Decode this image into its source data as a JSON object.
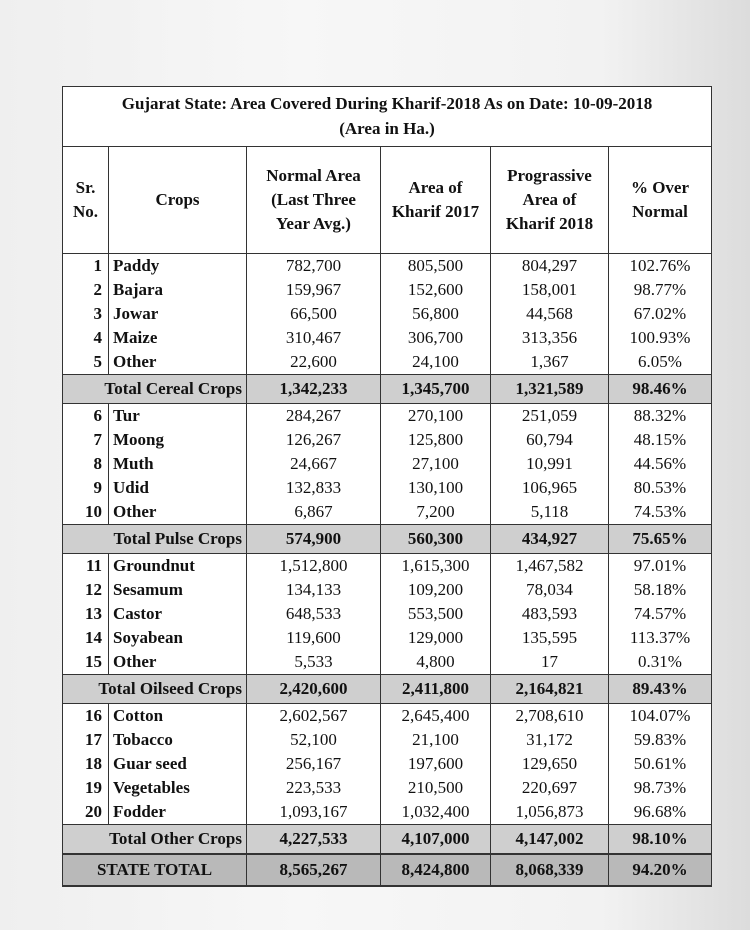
{
  "title": {
    "line1": "Gujarat State: Area Covered During Kharif-2018 As on Date: 10-09-2018",
    "line2": "(Area in Ha.)"
  },
  "headers": {
    "sr": [
      "Sr.",
      "No."
    ],
    "crops": "Crops",
    "normal": [
      "Normal Area",
      "(Last Three",
      "Year Avg.)"
    ],
    "k2017": [
      "Area of",
      "Kharif 2017"
    ],
    "k2018": [
      "Prograssive",
      "Area of",
      "Kharif 2018"
    ],
    "pct": [
      "% Over",
      "Normal"
    ]
  },
  "groups": [
    {
      "rows": [
        {
          "sr": "1",
          "crop": "Paddy",
          "normal": "782,700",
          "k2017": "805,500",
          "k2018": "804,297",
          "pct": "102.76%"
        },
        {
          "sr": "2",
          "crop": "Bajara",
          "normal": "159,967",
          "k2017": "152,600",
          "k2018": "158,001",
          "pct": "98.77%"
        },
        {
          "sr": "3",
          "crop": "Jowar",
          "normal": "66,500",
          "k2017": "56,800",
          "k2018": "44,568",
          "pct": "67.02%"
        },
        {
          "sr": "4",
          "crop": "Maize",
          "normal": "310,467",
          "k2017": "306,700",
          "k2018": "313,356",
          "pct": "100.93%"
        },
        {
          "sr": "5",
          "crop": "Other",
          "normal": "22,600",
          "k2017": "24,100",
          "k2018": "1,367",
          "pct": "6.05%"
        }
      ],
      "total": {
        "label": "Total Cereal Crops",
        "normal": "1,342,233",
        "k2017": "1,345,700",
        "k2018": "1,321,589",
        "pct": "98.46%"
      }
    },
    {
      "rows": [
        {
          "sr": "6",
          "crop": "Tur",
          "normal": "284,267",
          "k2017": "270,100",
          "k2018": "251,059",
          "pct": "88.32%"
        },
        {
          "sr": "7",
          "crop": "Moong",
          "normal": "126,267",
          "k2017": "125,800",
          "k2018": "60,794",
          "pct": "48.15%"
        },
        {
          "sr": "8",
          "crop": "Muth",
          "normal": "24,667",
          "k2017": "27,100",
          "k2018": "10,991",
          "pct": "44.56%"
        },
        {
          "sr": "9",
          "crop": "Udid",
          "normal": "132,833",
          "k2017": "130,100",
          "k2018": "106,965",
          "pct": "80.53%"
        },
        {
          "sr": "10",
          "crop": "Other",
          "normal": "6,867",
          "k2017": "7,200",
          "k2018": "5,118",
          "pct": "74.53%"
        }
      ],
      "total": {
        "label": "Total Pulse Crops",
        "normal": "574,900",
        "k2017": "560,300",
        "k2018": "434,927",
        "pct": "75.65%"
      }
    },
    {
      "rows": [
        {
          "sr": "11",
          "crop": "Groundnut",
          "normal": "1,512,800",
          "k2017": "1,615,300",
          "k2018": "1,467,582",
          "pct": "97.01%"
        },
        {
          "sr": "12",
          "crop": "Sesamum",
          "normal": "134,133",
          "k2017": "109,200",
          "k2018": "78,034",
          "pct": "58.18%"
        },
        {
          "sr": "13",
          "crop": "Castor",
          "normal": "648,533",
          "k2017": "553,500",
          "k2018": "483,593",
          "pct": "74.57%"
        },
        {
          "sr": "14",
          "crop": "Soyabean",
          "normal": "119,600",
          "k2017": "129,000",
          "k2018": "135,595",
          "pct": "113.37%"
        },
        {
          "sr": "15",
          "crop": "Other",
          "normal": "5,533",
          "k2017": "4,800",
          "k2018": "17",
          "pct": "0.31%"
        }
      ],
      "total": {
        "label": "Total Oilseed Crops",
        "normal": "2,420,600",
        "k2017": "2,411,800",
        "k2018": "2,164,821",
        "pct": "89.43%"
      }
    },
    {
      "rows": [
        {
          "sr": "16",
          "crop": "Cotton",
          "normal": "2,602,567",
          "k2017": "2,645,400",
          "k2018": "2,708,610",
          "pct": "104.07%"
        },
        {
          "sr": "17",
          "crop": "Tobacco",
          "normal": "52,100",
          "k2017": "21,100",
          "k2018": "31,172",
          "pct": "59.83%"
        },
        {
          "sr": "18",
          "crop": "Guar seed",
          "normal": "256,167",
          "k2017": "197,600",
          "k2018": "129,650",
          "pct": "50.61%"
        },
        {
          "sr": "19",
          "crop": "Vegetables",
          "normal": "223,533",
          "k2017": "210,500",
          "k2018": "220,697",
          "pct": "98.73%"
        },
        {
          "sr": "20",
          "crop": "Fodder",
          "normal": "1,093,167",
          "k2017": "1,032,400",
          "k2018": "1,056,873",
          "pct": "96.68%"
        }
      ],
      "total": {
        "label": "Total Other Crops",
        "normal": "4,227,533",
        "k2017": "4,107,000",
        "k2018": "4,147,002",
        "pct": "98.10%"
      }
    }
  ],
  "grand_total": {
    "label": "STATE TOTAL",
    "normal": "8,565,267",
    "k2017": "8,424,800",
    "k2018": "8,068,339",
    "pct": "94.20%"
  }
}
